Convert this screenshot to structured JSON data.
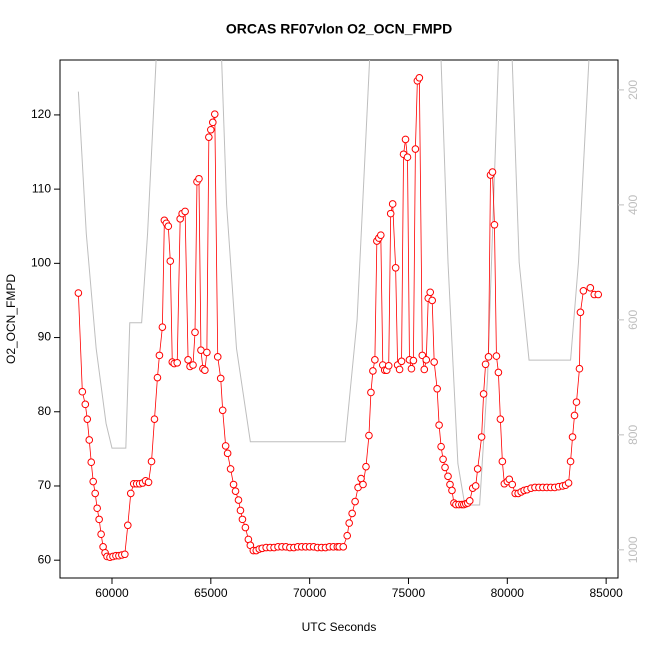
{
  "chart_data": {
    "type": "line",
    "title": "ORCAS RF07vlon O2_OCN_FMPD",
    "x_label": "UTC Seconds",
    "y_label": "O2_OCN_FMPD",
    "xlim": [
      57370,
      85600
    ],
    "ylim": [
      57.6,
      127.4
    ],
    "y2lim": [
      1049,
      148
    ],
    "xticks": [
      60000,
      65000,
      70000,
      75000,
      80000,
      85000
    ],
    "yticks": [
      60,
      70,
      80,
      90,
      100,
      110,
      120
    ],
    "y2ticks": [
      200,
      400,
      600,
      800,
      1000
    ],
    "series": [
      {
        "color": "#ff0000",
        "markers": true,
        "x": [
          58300,
          58500,
          58650,
          58750,
          58850,
          58950,
          59050,
          59150,
          59250,
          59350,
          59450,
          59550,
          59650,
          59750,
          59900,
          60050,
          60200,
          60350,
          60500,
          60650,
          60800,
          60950,
          61100,
          61250,
          61400,
          61550,
          61700,
          61850,
          62000,
          62150,
          62300,
          62400,
          62550,
          62650,
          62750,
          62850,
          62950,
          63050,
          63150,
          63300,
          63450,
          63550,
          63700,
          63850,
          63950,
          64100,
          64200,
          64300,
          64400,
          64500,
          64600,
          64700,
          64800,
          64900,
          65000,
          65100,
          65200,
          65350,
          65500,
          65600,
          65750,
          65850,
          66000,
          66150,
          66250,
          66400,
          66500,
          66600,
          66750,
          66900,
          67000,
          67150,
          67300,
          67450,
          67600,
          67800,
          68000,
          68200,
          68400,
          68600,
          68800,
          69000,
          69200,
          69400,
          69600,
          69800,
          70000,
          70200,
          70400,
          70600,
          70800,
          71000,
          71200,
          71400,
          71500,
          71700,
          71900,
          72000,
          72150,
          72300,
          72450,
          72600,
          72700,
          72850,
          73000,
          73100,
          73200,
          73300,
          73400,
          73500,
          73600,
          73700,
          73800,
          73900,
          74000,
          74100,
          74200,
          74350,
          74450,
          74550,
          74650,
          74750,
          74850,
          74950,
          75050,
          75150,
          75250,
          75350,
          75450,
          75550,
          75700,
          75800,
          75900,
          76000,
          76100,
          76200,
          76300,
          76450,
          76550,
          76650,
          76750,
          76850,
          77000,
          77100,
          77200,
          77300,
          77400,
          77550,
          77700,
          77800,
          77900,
          78000,
          78100,
          78250,
          78400,
          78500,
          78700,
          78800,
          78900,
          79050,
          79150,
          79250,
          79350,
          79450,
          79550,
          79650,
          79750,
          79850,
          80000,
          80100,
          80250,
          80400,
          80550,
          80700,
          80850,
          81000,
          81200,
          81400,
          81600,
          81800,
          82000,
          82200,
          82400,
          82600,
          82800,
          82950,
          83100,
          83200,
          83300,
          83400,
          83500,
          83650,
          83700,
          83850,
          84200,
          84400,
          84600
        ],
        "values": [
          96,
          82.7,
          81,
          79,
          76.2,
          73.2,
          70.6,
          69,
          67,
          65.5,
          63.5,
          61.8,
          61,
          60.5,
          60.4,
          60.5,
          60.6,
          60.6,
          60.7,
          60.8,
          64.7,
          69,
          70.3,
          70.3,
          70.3,
          70.4,
          70.7,
          70.5,
          73.3,
          79,
          84.6,
          87.6,
          91.4,
          105.8,
          105.4,
          105,
          100.3,
          86.7,
          86.5,
          86.6,
          106,
          106.7,
          107,
          87,
          86.1,
          86.3,
          90.7,
          111,
          111.4,
          88.3,
          85.8,
          85.6,
          88,
          117,
          118,
          119,
          120.1,
          87.4,
          84.5,
          80.2,
          75.4,
          74.4,
          72.3,
          70.2,
          69.3,
          68.1,
          66.7,
          65.5,
          64.4,
          62.8,
          62,
          61.3,
          61.3,
          61.5,
          61.6,
          61.7,
          61.7,
          61.7,
          61.8,
          61.8,
          61.8,
          61.7,
          61.7,
          61.8,
          61.8,
          61.8,
          61.8,
          61.8,
          61.7,
          61.7,
          61.7,
          61.8,
          61.8,
          61.8,
          61.8,
          61.8,
          63.3,
          65,
          66.3,
          67.9,
          69.8,
          71,
          70.2,
          72.6,
          76.8,
          82.6,
          85.5,
          87,
          103,
          103.4,
          103.8,
          86.3,
          85.6,
          85.6,
          86.2,
          106.7,
          108,
          99.4,
          86.3,
          85.7,
          86.8,
          114.7,
          116.7,
          114.3,
          87,
          85.8,
          86.9,
          115.4,
          124.6,
          125,
          87.6,
          85.7,
          87,
          95.3,
          96.1,
          95,
          86.7,
          83.1,
          78.2,
          75.3,
          73.6,
          72.5,
          71.3,
          70.2,
          69.4,
          67.7,
          67.5,
          67.5,
          67.5,
          67.5,
          67.6,
          67.7,
          68,
          69.7,
          70,
          72.3,
          76.6,
          82.4,
          86.4,
          87.4,
          111.9,
          112.3,
          105.2,
          87.5,
          85.3,
          79,
          73.3,
          70.3,
          70.6,
          70.9,
          70.2,
          69,
          69,
          69.2,
          69.4,
          69.5,
          69.7,
          69.8,
          69.8,
          69.8,
          69.8,
          69.8,
          69.8,
          69.9,
          70,
          70.1,
          70.4,
          73.3,
          76.6,
          79.5,
          81.3,
          85.8,
          93.4,
          96.3,
          96.7,
          95.8,
          95.8
        ]
      },
      {
        "color": "#bebebe",
        "axis": "y2",
        "markers": false,
        "x": [
          58300,
          58700,
          59200,
          59700,
          60000,
          60700,
          60900,
          61500,
          61800,
          62300,
          65500,
          65800,
          66300,
          67000,
          71800,
          72400,
          73100,
          76600,
          77000,
          77500,
          77850,
          78600,
          79000,
          79600,
          80200,
          80600,
          81100,
          83200,
          83600,
          84200
        ],
        "values": [
          203,
          450,
          650,
          780,
          823,
          823,
          605,
          605,
          450,
          100,
          100,
          400,
          650,
          812,
          812,
          600,
          100,
          100,
          500,
          850,
          922,
          922,
          700,
          100,
          100,
          500,
          670,
          670,
          500,
          100
        ]
      }
    ]
  }
}
